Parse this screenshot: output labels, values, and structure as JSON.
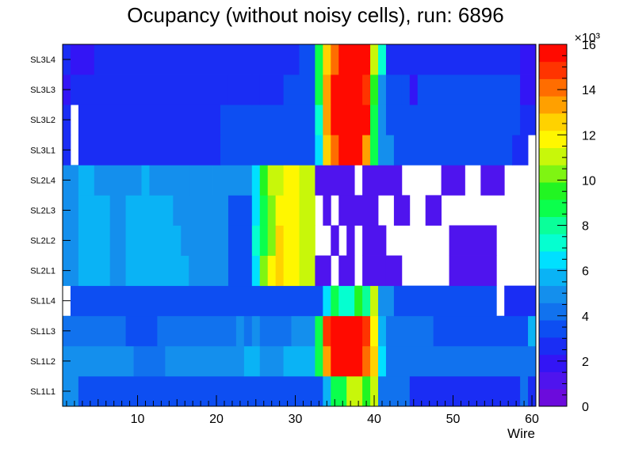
{
  "chart_data": {
    "type": "heatmap",
    "title": "Ocupancy (without noisy cells), run: 6896",
    "xlabel": "Wire",
    "ylabel": "",
    "xlim": [
      0.5,
      60.5
    ],
    "x_ticks": [
      10,
      20,
      30,
      40,
      50,
      60
    ],
    "layers": [
      "SL1L1",
      "SL1L2",
      "SL1L3",
      "SL1L4",
      "SL2L1",
      "SL2L2",
      "SL2L3",
      "SL2L4",
      "SL3L1",
      "SL3L2",
      "SL3L3",
      "SL3L4"
    ],
    "z_range": [
      0,
      16000
    ],
    "z_ticks": [
      0,
      2,
      4,
      6,
      8,
      10,
      12,
      14,
      16
    ],
    "z_exponent_label": "×10³",
    "z_unit_scale": 1000,
    "palette": [
      "#6c0bdc",
      "#4f14ee",
      "#3315f5",
      "#1a2df4",
      "#0d4ef2",
      "#1172ee",
      "#148fed",
      "#0ab3f5",
      "#00e0ff",
      "#05ffd0",
      "#0aff9a",
      "#0bff4c",
      "#22f522",
      "#7ff512",
      "#c8f70a",
      "#fff700",
      "#ffd200",
      "#ffa000",
      "#ff6d00",
      "#ff3400",
      "#ff0a00"
    ],
    "rows": {
      "SL1L1": [
        [
          1,
          2,
          4.6
        ],
        [
          3,
          33,
          3.6
        ],
        [
          34,
          34,
          5.4
        ],
        [
          35,
          36,
          9.0
        ],
        [
          37,
          38,
          11.2
        ],
        [
          39,
          39,
          9.6
        ],
        [
          40,
          40,
          11.4
        ],
        [
          41,
          44,
          4.2
        ],
        [
          45,
          58,
          2.7
        ],
        [
          59,
          59,
          4.2
        ],
        [
          60,
          60,
          2.9
        ]
      ],
      "SL1L2": [
        [
          1,
          9,
          4.8
        ],
        [
          10,
          13,
          4.0
        ],
        [
          14,
          23,
          4.6
        ],
        [
          24,
          25,
          6.0
        ],
        [
          26,
          28,
          4.6
        ],
        [
          29,
          32,
          5.4
        ],
        [
          33,
          33,
          8.4
        ],
        [
          34,
          34,
          13.5
        ],
        [
          35,
          35,
          16.2
        ],
        [
          36,
          38,
          15.6
        ],
        [
          39,
          39,
          14.1
        ],
        [
          40,
          40,
          12.8
        ],
        [
          41,
          41,
          6.2
        ],
        [
          42,
          60,
          4.0
        ]
      ],
      "SL1L3": [
        [
          1,
          8,
          4.4
        ],
        [
          9,
          12,
          3.6
        ],
        [
          13,
          22,
          4.4
        ],
        [
          23,
          23,
          5.0
        ],
        [
          24,
          24,
          4.4
        ],
        [
          25,
          25,
          5.0
        ],
        [
          26,
          29,
          4.4
        ],
        [
          30,
          32,
          5.2
        ],
        [
          33,
          33,
          8.8
        ],
        [
          34,
          34,
          14.5
        ],
        [
          35,
          35,
          15.6
        ],
        [
          36,
          38,
          15.4
        ],
        [
          39,
          39,
          15.0
        ],
        [
          40,
          40,
          12.0
        ],
        [
          41,
          41,
          5.8
        ],
        [
          42,
          47,
          4.4
        ],
        [
          48,
          59,
          3.8
        ],
        [
          60,
          60,
          6.0
        ]
      ],
      "SL1L4": [
        [
          1,
          1,
          0
        ],
        [
          2,
          33,
          3.3
        ],
        [
          34,
          34,
          6.4
        ],
        [
          35,
          35,
          9.0
        ],
        [
          36,
          37,
          7.6
        ],
        [
          38,
          38,
          9.6
        ],
        [
          39,
          39,
          8.0
        ],
        [
          40,
          40,
          11.0
        ],
        [
          41,
          42,
          5.0
        ],
        [
          43,
          55,
          3.4
        ],
        [
          56,
          56,
          0
        ],
        [
          57,
          60,
          3.0
        ]
      ],
      "SL2L1": [
        [
          1,
          2,
          4.6
        ],
        [
          3,
          6,
          5.4
        ],
        [
          7,
          8,
          4.6
        ],
        [
          9,
          16,
          5.4
        ],
        [
          17,
          21,
          4.6
        ],
        [
          22,
          24,
          3.6
        ],
        [
          25,
          25,
          6.2
        ],
        [
          26,
          26,
          10.0
        ],
        [
          27,
          27,
          11.8
        ],
        [
          28,
          28,
          12.4
        ],
        [
          29,
          30,
          11.8
        ],
        [
          31,
          32,
          11.4
        ],
        [
          33,
          34,
          1.4
        ],
        [
          35,
          35,
          0
        ],
        [
          36,
          37,
          1.4
        ],
        [
          38,
          38,
          0
        ],
        [
          39,
          41,
          1.4
        ],
        [
          42,
          43,
          1.2
        ],
        [
          44,
          45,
          0
        ],
        [
          46,
          49,
          0
        ],
        [
          50,
          55,
          1.2
        ],
        [
          56,
          60,
          0
        ]
      ],
      "SL2L2": [
        [
          1,
          2,
          4.6
        ],
        [
          3,
          6,
          5.4
        ],
        [
          7,
          8,
          4.6
        ],
        [
          9,
          15,
          5.4
        ],
        [
          16,
          21,
          4.6
        ],
        [
          22,
          24,
          3.6
        ],
        [
          25,
          25,
          7.0
        ],
        [
          26,
          26,
          9.0
        ],
        [
          27,
          27,
          10.6
        ],
        [
          28,
          28,
          12.2
        ],
        [
          29,
          30,
          11.6
        ],
        [
          31,
          32,
          11.2
        ],
        [
          33,
          34,
          0
        ],
        [
          35,
          35,
          1.4
        ],
        [
          36,
          36,
          0
        ],
        [
          37,
          37,
          1.4
        ],
        [
          38,
          38,
          0
        ],
        [
          39,
          41,
          1.4
        ],
        [
          42,
          49,
          0
        ],
        [
          50,
          55,
          1.2
        ],
        [
          56,
          60,
          0
        ]
      ],
      "SL2L3": [
        [
          1,
          2,
          4.6
        ],
        [
          3,
          6,
          5.4
        ],
        [
          7,
          8,
          4.6
        ],
        [
          9,
          14,
          5.4
        ],
        [
          15,
          21,
          4.6
        ],
        [
          22,
          24,
          3.6
        ],
        [
          25,
          25,
          6.4
        ],
        [
          26,
          26,
          8.6
        ],
        [
          27,
          27,
          10.6
        ],
        [
          28,
          28,
          11.6
        ],
        [
          29,
          30,
          11.8
        ],
        [
          31,
          32,
          11.2
        ],
        [
          33,
          33,
          0
        ],
        [
          34,
          34,
          1.4
        ],
        [
          35,
          35,
          0
        ],
        [
          36,
          40,
          1.4
        ],
        [
          41,
          42,
          0
        ],
        [
          43,
          44,
          1.4
        ],
        [
          45,
          46,
          0
        ],
        [
          47,
          48,
          1.2
        ],
        [
          49,
          60,
          0
        ]
      ],
      "SL2L4": [
        [
          1,
          2,
          4.6
        ],
        [
          3,
          4,
          5.4
        ],
        [
          5,
          10,
          4.6
        ],
        [
          11,
          11,
          5.4
        ],
        [
          12,
          16,
          4.6
        ],
        [
          17,
          19,
          4.6
        ],
        [
          20,
          24,
          4.6
        ],
        [
          25,
          25,
          6.8
        ],
        [
          26,
          26,
          9.4
        ],
        [
          27,
          27,
          11.0
        ],
        [
          28,
          28,
          11.4
        ],
        [
          29,
          30,
          11.8
        ],
        [
          31,
          32,
          11.4
        ],
        [
          33,
          37,
          1.4
        ],
        [
          38,
          38,
          0
        ],
        [
          39,
          43,
          1.4
        ],
        [
          44,
          48,
          0
        ],
        [
          49,
          51,
          1.2
        ],
        [
          52,
          53,
          0
        ],
        [
          54,
          56,
          1.2
        ],
        [
          57,
          60,
          0
        ]
      ],
      "SL3L1": [
        [
          1,
          1,
          2.8
        ],
        [
          2,
          2,
          0
        ],
        [
          3,
          20,
          2.8
        ],
        [
          21,
          32,
          3.2
        ],
        [
          33,
          33,
          6.4
        ],
        [
          34,
          34,
          12.6
        ],
        [
          35,
          35,
          13.8
        ],
        [
          36,
          36,
          17.0
        ],
        [
          37,
          37,
          19.6
        ],
        [
          38,
          38,
          18.6
        ],
        [
          39,
          39,
          13.4
        ],
        [
          40,
          40,
          8.6
        ],
        [
          41,
          42,
          4.6
        ],
        [
          43,
          57,
          3.4
        ],
        [
          58,
          59,
          2.4
        ],
        [
          60,
          60,
          0
        ]
      ],
      "SL3L2": [
        [
          1,
          1,
          2.8
        ],
        [
          2,
          2,
          0
        ],
        [
          3,
          20,
          2.8
        ],
        [
          21,
          32,
          3.2
        ],
        [
          33,
          33,
          7.6
        ],
        [
          34,
          34,
          13.6
        ],
        [
          35,
          35,
          15.8
        ],
        [
          36,
          36,
          17.4
        ],
        [
          37,
          39,
          18.8
        ],
        [
          40,
          40,
          9.0
        ],
        [
          41,
          41,
          5.0
        ],
        [
          42,
          58,
          3.4
        ],
        [
          59,
          60,
          2.4
        ]
      ],
      "SL3L3": [
        [
          1,
          1,
          1.8
        ],
        [
          2,
          2,
          2.6
        ],
        [
          3,
          21,
          2.8
        ],
        [
          22,
          24,
          2.6
        ],
        [
          25,
          25,
          2.8
        ],
        [
          26,
          28,
          2.6
        ],
        [
          29,
          32,
          3.2
        ],
        [
          33,
          33,
          8.8
        ],
        [
          34,
          34,
          13.4
        ],
        [
          35,
          35,
          16.2
        ],
        [
          36,
          38,
          18.2
        ],
        [
          39,
          39,
          14.8
        ],
        [
          40,
          40,
          9.4
        ],
        [
          41,
          41,
          5.0
        ],
        [
          42,
          43,
          3.8
        ],
        [
          44,
          44,
          3.4
        ],
        [
          45,
          45,
          1.8
        ],
        [
          46,
          58,
          3.4
        ],
        [
          59,
          60,
          2.2
        ]
      ],
      "SL3L4": [
        [
          1,
          1,
          2.8
        ],
        [
          2,
          4,
          2.0
        ],
        [
          5,
          30,
          2.8
        ],
        [
          31,
          32,
          3.8
        ],
        [
          33,
          33,
          8.4
        ],
        [
          34,
          34,
          12.6
        ],
        [
          35,
          35,
          14.2
        ],
        [
          36,
          36,
          16.8
        ],
        [
          37,
          38,
          19.6
        ],
        [
          39,
          39,
          18.4
        ],
        [
          40,
          40,
          10.8
        ],
        [
          41,
          41,
          7.0
        ],
        [
          42,
          58,
          3.0
        ],
        [
          59,
          60,
          2.0
        ]
      ]
    }
  }
}
